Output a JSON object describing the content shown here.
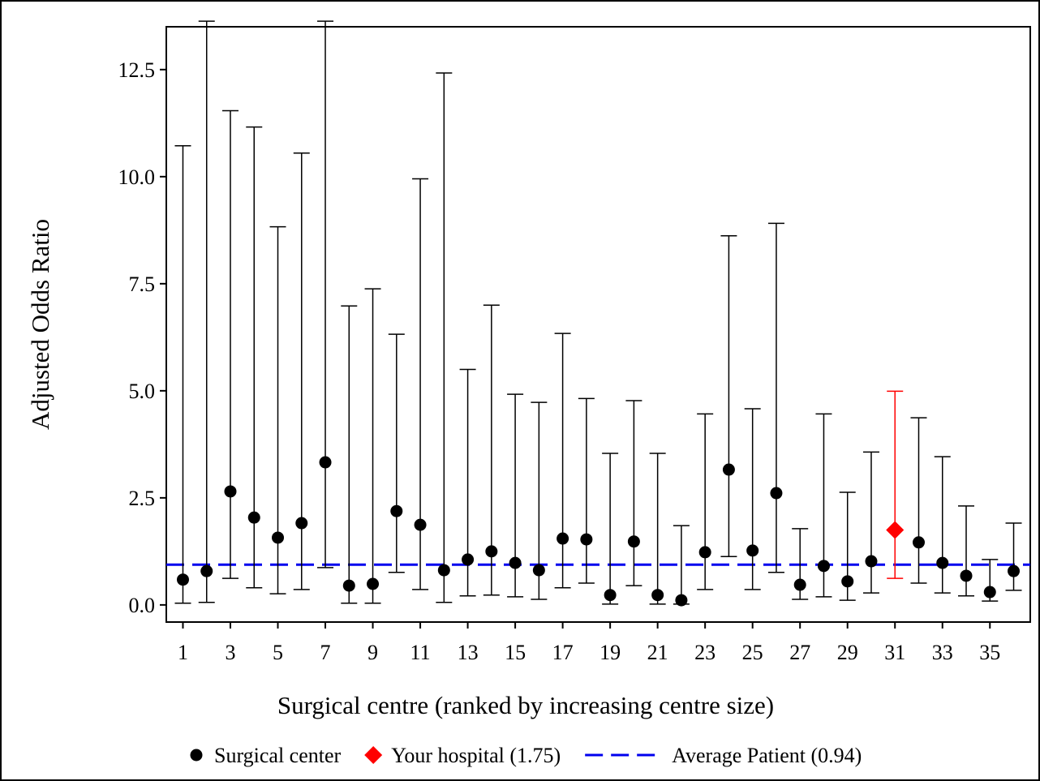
{
  "chart_data": {
    "type": "errorbar",
    "xlabel": "Surgical centre (ranked by increasing centre size)",
    "ylabel": "Adjusted Odds Ratio",
    "xlim": [
      0.3,
      36.7
    ],
    "xticks": [
      1,
      3,
      5,
      7,
      9,
      11,
      13,
      15,
      17,
      19,
      21,
      23,
      25,
      27,
      29,
      31,
      33,
      35
    ],
    "ylim": [
      -0.4,
      13.5
    ],
    "yticks": [
      {
        "value": 0,
        "label": "0.0"
      },
      2.5,
      {
        "value": 5,
        "label": "5.0"
      },
      7.5,
      {
        "value": 10,
        "label": "10.0"
      },
      12.5
    ],
    "series": [
      {
        "name": "Surgical center",
        "color": "#000000",
        "marker": "circle",
        "x": [
          1,
          2,
          3,
          4,
          5,
          6,
          7,
          8,
          9,
          10,
          11,
          12,
          13,
          14,
          15,
          16,
          17,
          18,
          19,
          20,
          21,
          22,
          23,
          24,
          25,
          26,
          27,
          28,
          29,
          30,
          32,
          33,
          34,
          35,
          36
        ],
        "values": [
          0.59,
          0.79,
          2.65,
          2.04,
          1.57,
          1.91,
          3.33,
          0.45,
          0.49,
          2.19,
          1.87,
          0.81,
          1.06,
          1.25,
          0.98,
          0.81,
          1.55,
          1.53,
          0.23,
          1.48,
          0.23,
          0.11,
          1.23,
          3.16,
          1.27,
          2.61,
          0.47,
          0.91,
          0.55,
          1.02,
          1.46,
          0.98,
          0.68,
          0.3,
          0.79
        ],
        "lower": [
          0.04,
          0.06,
          0.62,
          0.4,
          0.26,
          0.36,
          0.87,
          0.04,
          0.04,
          0.76,
          0.36,
          0.06,
          0.21,
          0.23,
          0.19,
          0.13,
          0.4,
          0.51,
          0.02,
          0.45,
          0.02,
          0.02,
          0.36,
          1.13,
          0.36,
          0.76,
          0.13,
          0.19,
          0.11,
          0.28,
          0.51,
          0.28,
          0.21,
          0.09,
          0.34
        ],
        "upper": [
          10.72,
          13.63,
          11.54,
          11.16,
          8.83,
          10.55,
          13.63,
          6.98,
          7.38,
          6.32,
          9.95,
          12.42,
          5.5,
          7.0,
          4.92,
          4.73,
          6.34,
          4.82,
          3.54,
          4.77,
          3.54,
          1.85,
          4.46,
          8.62,
          4.58,
          8.91,
          1.78,
          4.46,
          2.63,
          3.57,
          4.37,
          3.46,
          2.31,
          1.06,
          1.91
        ]
      },
      {
        "name": "Your hospital (1.75)",
        "color": "#ff0000",
        "marker": "diamond",
        "x": [
          31
        ],
        "values": [
          1.75
        ],
        "lower": [
          0.62
        ],
        "upper": [
          4.99
        ]
      }
    ],
    "reference_line": {
      "name": "Average Patient (0.94)",
      "color": "#0000ee",
      "value": 0.94
    }
  }
}
